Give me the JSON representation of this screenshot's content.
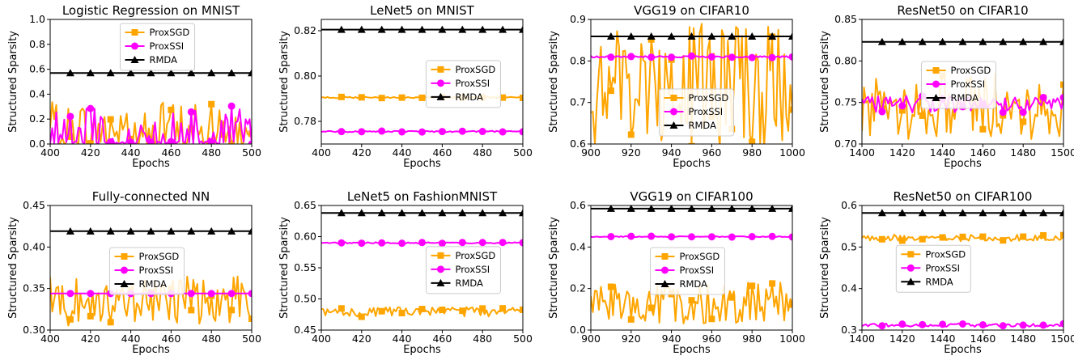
{
  "figure": {
    "colors": {
      "ProxSGD": "#ffa500",
      "ProxSSI": "#ff00ff",
      "RMDA": "#000000"
    }
  },
  "chart_data": [
    {
      "type": "line",
      "title": "Logistic Regression on MNIST",
      "xlabel": "Epochs",
      "ylabel": "Structured Sparsity",
      "xlim": [
        400,
        500
      ],
      "ylim": [
        0.0,
        1.0
      ],
      "xticks": [
        400,
        420,
        440,
        460,
        480,
        500
      ],
      "yticks": [
        0.0,
        0.2,
        0.4,
        0.6,
        0.8,
        1.0
      ],
      "ytick_labels": [
        "0.0",
        "0.2",
        "0.4",
        "0.6",
        "0.8",
        "1.0"
      ],
      "legend_position": "upper-center",
      "series": [
        {
          "name": "ProxSGD",
          "color": "#ffa500",
          "marker": "square",
          "base": 0.1,
          "amp": 0.3,
          "noise": "spiky"
        },
        {
          "name": "ProxSSI",
          "color": "#ff00ff",
          "marker": "circle",
          "base": 0.05,
          "amp": 0.33,
          "noise": "spiky"
        },
        {
          "name": "RMDA",
          "color": "#000000",
          "marker": "triangle",
          "base": 0.57,
          "amp": 0.0,
          "noise": "flat"
        }
      ]
    },
    {
      "type": "line",
      "title": "LeNet5 on MNIST",
      "xlabel": "Epochs",
      "ylabel": "Structured Sparsity",
      "xlim": [
        400,
        500
      ],
      "ylim": [
        0.77,
        0.825
      ],
      "xticks": [
        400,
        420,
        440,
        460,
        480,
        500
      ],
      "yticks": [
        0.78,
        0.8,
        0.82
      ],
      "ytick_labels": [
        "0.78",
        "0.80",
        "0.82"
      ],
      "legend_position": "center-right",
      "series": [
        {
          "name": "ProxSGD",
          "color": "#ffa500",
          "marker": "square",
          "base": 0.7905,
          "amp": 0.0003,
          "noise": "small"
        },
        {
          "name": "ProxSSI",
          "color": "#ff00ff",
          "marker": "circle",
          "base": 0.7755,
          "amp": 0.0003,
          "noise": "small"
        },
        {
          "name": "RMDA",
          "color": "#000000",
          "marker": "triangle",
          "base": 0.8205,
          "amp": 0.0,
          "noise": "flat"
        }
      ]
    },
    {
      "type": "line",
      "title": "VGG19 on CIFAR10",
      "xlabel": "Epochs",
      "ylabel": "Structured Sparsity",
      "xlim": [
        900,
        1000
      ],
      "ylim": [
        0.6,
        0.9
      ],
      "xticks": [
        900,
        920,
        940,
        960,
        980,
        1000
      ],
      "yticks": [
        0.6,
        0.7,
        0.8,
        0.9
      ],
      "ytick_labels": [
        "0.6",
        "0.7",
        "0.8",
        "0.9"
      ],
      "legend_position": "lower-center",
      "series": [
        {
          "name": "ProxSGD",
          "color": "#ffa500",
          "marker": "square",
          "base": 0.74,
          "amp": 0.15,
          "noise": "wild"
        },
        {
          "name": "ProxSSI",
          "color": "#ff00ff",
          "marker": "circle",
          "base": 0.81,
          "amp": 0.002,
          "noise": "small"
        },
        {
          "name": "RMDA",
          "color": "#000000",
          "marker": "triangle",
          "base": 0.859,
          "amp": 0.0,
          "noise": "flat"
        }
      ]
    },
    {
      "type": "line",
      "title": "ResNet50 on CIFAR10",
      "xlabel": "Epochs",
      "ylabel": "Structured Sparsity",
      "xlim": [
        1400,
        1500
      ],
      "ylim": [
        0.7,
        0.85
      ],
      "xticks": [
        1400,
        1420,
        1440,
        1460,
        1480,
        1500
      ],
      "yticks": [
        0.7,
        0.75,
        0.8,
        0.85
      ],
      "ytick_labels": [
        "0.70",
        "0.75",
        "0.80",
        "0.85"
      ],
      "legend_position": "center",
      "series": [
        {
          "name": "ProxSGD",
          "color": "#ffa500",
          "marker": "square",
          "base": 0.745,
          "amp": 0.04,
          "noise": "medium"
        },
        {
          "name": "ProxSSI",
          "color": "#ff00ff",
          "marker": "circle",
          "base": 0.748,
          "amp": 0.01,
          "noise": "medium"
        },
        {
          "name": "RMDA",
          "color": "#000000",
          "marker": "triangle",
          "base": 0.823,
          "amp": 0.0,
          "noise": "flat"
        }
      ]
    },
    {
      "type": "line",
      "title": "Fully-connected NN",
      "xlabel": "Epochs",
      "ylabel": "Structured Sparsity",
      "xlim": [
        400,
        500
      ],
      "ylim": [
        0.3,
        0.45
      ],
      "xticks": [
        400,
        420,
        440,
        460,
        480,
        500
      ],
      "yticks": [
        0.3,
        0.35,
        0.4,
        0.45
      ],
      "ytick_labels": [
        "0.30",
        "0.35",
        "0.40",
        "0.45"
      ],
      "legend_position": "center",
      "series": [
        {
          "name": "ProxSGD",
          "color": "#ffa500",
          "marker": "square",
          "base": 0.335,
          "amp": 0.03,
          "noise": "medium"
        },
        {
          "name": "ProxSSI",
          "color": "#ff00ff",
          "marker": "circle",
          "base": 0.344,
          "amp": 0.0,
          "noise": "flat"
        },
        {
          "name": "RMDA",
          "color": "#000000",
          "marker": "triangle",
          "base": 0.419,
          "amp": 0.0,
          "noise": "flat"
        }
      ]
    },
    {
      "type": "line",
      "title": "LeNet5 on FashionMNIST",
      "xlabel": "Epochs",
      "ylabel": "Structured Sparsity",
      "xlim": [
        400,
        500
      ],
      "ylim": [
        0.45,
        0.65
      ],
      "xticks": [
        400,
        420,
        440,
        460,
        480,
        500
      ],
      "yticks": [
        0.45,
        0.5,
        0.55,
        0.6,
        0.65
      ],
      "ytick_labels": [
        "0.45",
        "0.50",
        "0.55",
        "0.60",
        "0.65"
      ],
      "legend_position": "center-right",
      "series": [
        {
          "name": "ProxSGD",
          "color": "#ffa500",
          "marker": "square",
          "base": 0.479,
          "amp": 0.008,
          "noise": "medium"
        },
        {
          "name": "ProxSSI",
          "color": "#ff00ff",
          "marker": "circle",
          "base": 0.59,
          "amp": 0.001,
          "noise": "small"
        },
        {
          "name": "RMDA",
          "color": "#000000",
          "marker": "triangle",
          "base": 0.638,
          "amp": 0.0,
          "noise": "flat"
        }
      ]
    },
    {
      "type": "line",
      "title": "VGG19 on CIFAR100",
      "xlabel": "Epochs",
      "ylabel": "Structured Sparsity",
      "xlim": [
        900,
        1000
      ],
      "ylim": [
        0.0,
        0.6
      ],
      "xticks": [
        900,
        920,
        940,
        960,
        980,
        1000
      ],
      "yticks": [
        0.0,
        0.2,
        0.4,
        0.6
      ],
      "ytick_labels": [
        "0.0",
        "0.2",
        "0.4",
        "0.6"
      ],
      "legend_position": "center",
      "series": [
        {
          "name": "ProxSGD",
          "color": "#ffa500",
          "marker": "square",
          "base": 0.13,
          "amp": 0.1,
          "noise": "wild"
        },
        {
          "name": "ProxSSI",
          "color": "#ff00ff",
          "marker": "circle",
          "base": 0.45,
          "amp": 0.002,
          "noise": "small"
        },
        {
          "name": "RMDA",
          "color": "#000000",
          "marker": "triangle",
          "base": 0.585,
          "amp": 0.0,
          "noise": "flat"
        }
      ]
    },
    {
      "type": "line",
      "title": "ResNet50 on CIFAR100",
      "xlabel": "Epochs",
      "ylabel": "Structured Sparsity",
      "xlim": [
        1400,
        1500
      ],
      "ylim": [
        0.3,
        0.6
      ],
      "xticks": [
        1400,
        1420,
        1440,
        1460,
        1480,
        1500
      ],
      "yticks": [
        0.3,
        0.4,
        0.5,
        0.6
      ],
      "ytick_labels": [
        "0.3",
        "0.4",
        "0.5",
        "0.6"
      ],
      "legend_position": "center-left",
      "series": [
        {
          "name": "ProxSGD",
          "color": "#ffa500",
          "marker": "square",
          "base": 0.522,
          "amp": 0.008,
          "noise": "small"
        },
        {
          "name": "ProxSSI",
          "color": "#ff00ff",
          "marker": "circle",
          "base": 0.312,
          "amp": 0.004,
          "noise": "small"
        },
        {
          "name": "RMDA",
          "color": "#000000",
          "marker": "triangle",
          "base": 0.582,
          "amp": 0.0,
          "noise": "flat"
        }
      ]
    }
  ]
}
